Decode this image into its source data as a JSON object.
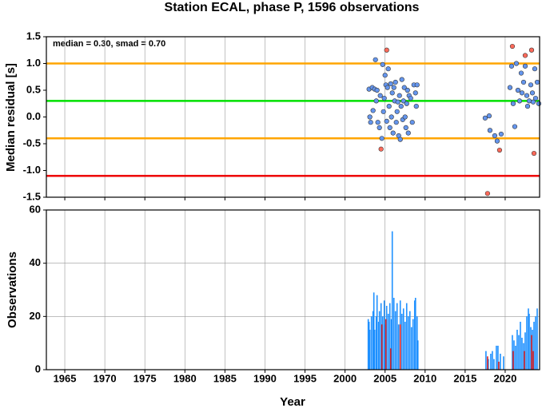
{
  "chart_data": [
    {
      "type": "scatter",
      "title": "Station ECAL, phase P, 1596 observations",
      "y_label": "Median residual [s]",
      "annotation": "median = 0.30, smad = 0.70",
      "xlim": [
        1962.7,
        2024.3
      ],
      "xticks": [
        1965,
        1970,
        1975,
        1980,
        1985,
        1990,
        1995,
        2000,
        2005,
        2010,
        2015,
        2020
      ],
      "ylim": [
        -1.5,
        1.5
      ],
      "yticks": [
        {
          "value": 1.5,
          "label": "1.5"
        },
        {
          "value": 1.0,
          "label": "1.0"
        },
        {
          "value": 0.5,
          "label": "0.5"
        },
        {
          "value": 0.0,
          "label": "0.0"
        },
        {
          "value": -0.5,
          "label": "-0.5"
        },
        {
          "value": -1.0,
          "label": "-1.0"
        },
        {
          "value": -1.5,
          "label": "-1.5"
        }
      ],
      "grid": true,
      "reference_lines": [
        {
          "value": 1.0,
          "color": "#ffa500"
        },
        {
          "value": 0.3,
          "color": "#00e000"
        },
        {
          "value": -0.4,
          "color": "#ffa500"
        },
        {
          "value": -1.1,
          "color": "#ee0000"
        }
      ],
      "series": [
        {
          "color": "#6495ed",
          "x": [
            2003.0,
            2003.1,
            2003.2,
            2003.4,
            2003.5,
            2003.7,
            2003.8,
            2003.9,
            2004.0,
            2004.1,
            2004.3,
            2004.4,
            2004.6,
            2004.7,
            2004.8,
            2004.9,
            2005.0,
            2005.1,
            2005.2,
            2005.3,
            2005.4,
            2005.5,
            2005.6,
            2005.7,
            2005.8,
            2005.9,
            2006.0,
            2006.1,
            2006.2,
            2006.3,
            2006.4,
            2006.5,
            2006.6,
            2006.7,
            2006.8,
            2006.9,
            2007.0,
            2007.1,
            2007.2,
            2007.3,
            2007.4,
            2007.5,
            2007.6,
            2007.7,
            2007.8,
            2007.9,
            2008.0,
            2008.2,
            2008.4,
            2008.6,
            2008.8,
            2008.9,
            2009.0,
            2017.5,
            2018.0,
            2018.1,
            2018.7,
            2019.0,
            2019.5,
            2020.6,
            2020.8,
            2021.0,
            2021.2,
            2021.4,
            2021.6,
            2021.8,
            2022.0,
            2022.1,
            2022.3,
            2022.5,
            2022.7,
            2022.8,
            2023.0,
            2023.2,
            2023.4,
            2023.5,
            2023.7,
            2023.8,
            2024.0,
            2024.2
          ],
          "values": [
            0.52,
            0.0,
            -0.1,
            0.55,
            0.12,
            0.52,
            1.07,
            0.3,
            0.5,
            -0.1,
            -0.2,
            0.4,
            -0.4,
            0.98,
            0.1,
            0.35,
            0.78,
            0.6,
            -0.08,
            0.55,
            0.9,
            0.2,
            -0.2,
            0.62,
            0.0,
            0.45,
            -0.3,
            0.55,
            0.3,
            0.65,
            -0.1,
            0.1,
            0.28,
            -0.35,
            0.4,
            -0.42,
            0.2,
            0.7,
            -0.05,
            0.3,
            0.55,
            0.0,
            -0.2,
            0.25,
            0.5,
            -0.3,
            0.4,
            0.35,
            -0.1,
            0.6,
            0.45,
            0.2,
            0.6,
            -0.02,
            0.02,
            -0.25,
            -0.35,
            -0.45,
            -0.32,
            0.55,
            0.95,
            0.25,
            -0.18,
            1.0,
            0.5,
            0.3,
            0.82,
            0.45,
            0.65,
            0.95,
            0.4,
            0.2,
            0.3,
            0.6,
            0.45,
            0.28,
            0.9,
            0.35,
            0.65,
            0.25
          ]
        },
        {
          "color": "#ff6a5a",
          "x": [
            2004.5,
            2005.2,
            2017.8,
            2019.3,
            2020.9,
            2022.5,
            2023.3,
            2023.6
          ],
          "values": [
            -0.6,
            1.25,
            -1.43,
            -0.62,
            1.32,
            1.15,
            1.25,
            -0.68
          ]
        }
      ]
    },
    {
      "type": "bar",
      "x_label": "Year",
      "y_label": "Observations",
      "xlim": [
        1962.7,
        2024.3
      ],
      "xticks": [
        1965,
        1970,
        1975,
        1980,
        1985,
        1990,
        1995,
        2000,
        2005,
        2010,
        2015,
        2020
      ],
      "ylim": [
        0,
        60
      ],
      "yticks": [
        0,
        20,
        40,
        60
      ],
      "grid": true,
      "series": [
        {
          "color": "#1e90ff",
          "x": [
            2002.9,
            2003.0,
            2003.1,
            2003.3,
            2003.5,
            2003.6,
            2003.7,
            2003.9,
            2004.0,
            2004.2,
            2004.3,
            2004.5,
            2004.7,
            2004.9,
            2005.0,
            2005.2,
            2005.4,
            2005.6,
            2005.8,
            2005.9,
            2006.1,
            2006.3,
            2006.5,
            2006.7,
            2006.9,
            2007.1,
            2007.3,
            2007.5,
            2007.7,
            2007.9,
            2008.1,
            2008.3,
            2008.5,
            2008.7,
            2008.8,
            2009.0,
            2009.1,
            2017.6,
            2017.9,
            2018.2,
            2018.4,
            2018.6,
            2018.9,
            2019.1,
            2019.4,
            2019.8,
            2020.9,
            2021.1,
            2021.3,
            2021.5,
            2021.7,
            2021.9,
            2022.1,
            2022.3,
            2022.5,
            2022.7,
            2022.9,
            2023.0,
            2023.2,
            2023.4,
            2023.6,
            2023.8,
            2024.0
          ],
          "values": [
            19,
            18,
            15,
            20,
            22,
            29,
            15,
            20,
            28,
            18,
            22,
            25,
            20,
            26,
            17,
            24,
            21,
            25,
            19,
            52,
            27,
            22,
            25,
            17,
            26,
            21,
            23,
            18,
            25,
            20,
            22,
            16,
            19,
            26,
            27,
            20,
            11,
            7,
            4,
            6,
            7,
            4,
            9,
            9,
            6,
            5,
            13,
            11,
            9,
            15,
            13,
            18,
            12,
            10,
            14,
            20,
            23,
            21,
            16,
            15,
            18,
            20,
            23
          ]
        },
        {
          "color": "#dd2222",
          "x": [
            2004.6,
            2005.1,
            2005.7,
            2006.9,
            2017.8,
            2019.2,
            2021.0,
            2022.4,
            2023.3,
            2023.5
          ],
          "values": [
            17,
            19,
            8,
            17,
            5,
            3,
            7,
            7,
            13,
            7
          ]
        }
      ]
    }
  ]
}
